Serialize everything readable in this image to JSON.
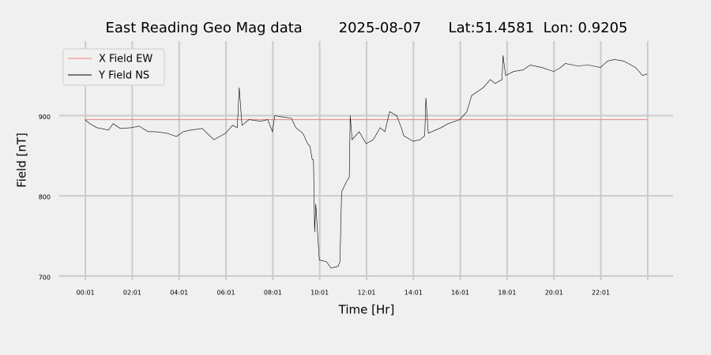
{
  "chart_data": {
    "type": "line",
    "title": "East Reading Geo Mag data        2025-08-07      Lat:51.4581  Lon: 0.9205",
    "x_label": "Time  [Hr]",
    "y_label": "Field  [nT]",
    "xlim": [
      -1.1,
      25.1
    ],
    "ylim": [
      695,
      993
    ],
    "xticks": [
      {
        "value": 0.0167,
        "label": "00:01"
      },
      {
        "value": 2.0167,
        "label": "02:01"
      },
      {
        "value": 4.0167,
        "label": "04:01"
      },
      {
        "value": 6.0167,
        "label": "06:01"
      },
      {
        "value": 8.0167,
        "label": "08:01"
      },
      {
        "value": 10.0167,
        "label": "10:01"
      },
      {
        "value": 12.0167,
        "label": "12:01"
      },
      {
        "value": 14.0167,
        "label": "14:01"
      },
      {
        "value": 16.0167,
        "label": "16:01"
      },
      {
        "value": 18.0167,
        "label": "18:01"
      },
      {
        "value": 20.0167,
        "label": "20:01"
      },
      {
        "value": 22.0167,
        "label": "22:01"
      },
      {
        "value": 24.0167,
        "label": null
      }
    ],
    "yticks": [
      700,
      800,
      900
    ],
    "grid": true,
    "legend": "upper left",
    "series": [
      {
        "name": "X Field EW",
        "color": "#f08080",
        "x": [
          0.0167,
          24.0167
        ],
        "values": [
          895,
          895
        ]
      },
      {
        "name": "Y Field NS",
        "color": "#000000",
        "x": [
          0,
          0.2,
          0.5,
          1.0,
          1.2,
          1.5,
          2.0,
          2.3,
          2.7,
          3.0,
          3.5,
          3.9,
          4.2,
          4.5,
          5.0,
          5.5,
          6.0,
          6.3,
          6.5,
          6.58,
          6.7,
          7.0,
          7.5,
          7.8,
          8.0,
          8.1,
          8.5,
          8.8,
          9.0,
          9.3,
          9.5,
          9.6,
          9.7,
          9.75,
          9.8,
          9.85,
          10.0,
          10.3,
          10.5,
          10.8,
          10.88,
          10.95,
          11.2,
          11.28,
          11.32,
          11.4,
          11.7,
          12.0,
          12.3,
          12.6,
          12.8,
          13.0,
          13.3,
          13.5,
          13.6,
          14.0,
          14.3,
          14.5,
          14.55,
          14.65,
          15.2,
          15.5,
          16.0,
          16.3,
          16.5,
          17.0,
          17.3,
          17.5,
          17.8,
          17.84,
          17.95,
          18.3,
          18.7,
          19.0,
          19.5,
          20.0,
          20.3,
          20.5,
          21.0,
          21.5,
          22.0,
          22.3,
          22.6,
          23.0,
          23.5,
          23.8,
          24.0
        ],
        "values": [
          895,
          890,
          885,
          882,
          890,
          884,
          885,
          887,
          880,
          880,
          878,
          874,
          880,
          882,
          884,
          870,
          878,
          888,
          885,
          935,
          888,
          895,
          893,
          895,
          880,
          900,
          898,
          897,
          885,
          878,
          865,
          862,
          845,
          845,
          755,
          790,
          720,
          718,
          710,
          712,
          718,
          805,
          820,
          823,
          900,
          870,
          880,
          865,
          870,
          885,
          880,
          905,
          900,
          885,
          875,
          868,
          870,
          875,
          922,
          878,
          885,
          890,
          895,
          905,
          925,
          935,
          945,
          940,
          945,
          975,
          950,
          955,
          957,
          963,
          960,
          955,
          960,
          965,
          962,
          963,
          960,
          968,
          970,
          968,
          960,
          950,
          952
        ]
      }
    ]
  }
}
